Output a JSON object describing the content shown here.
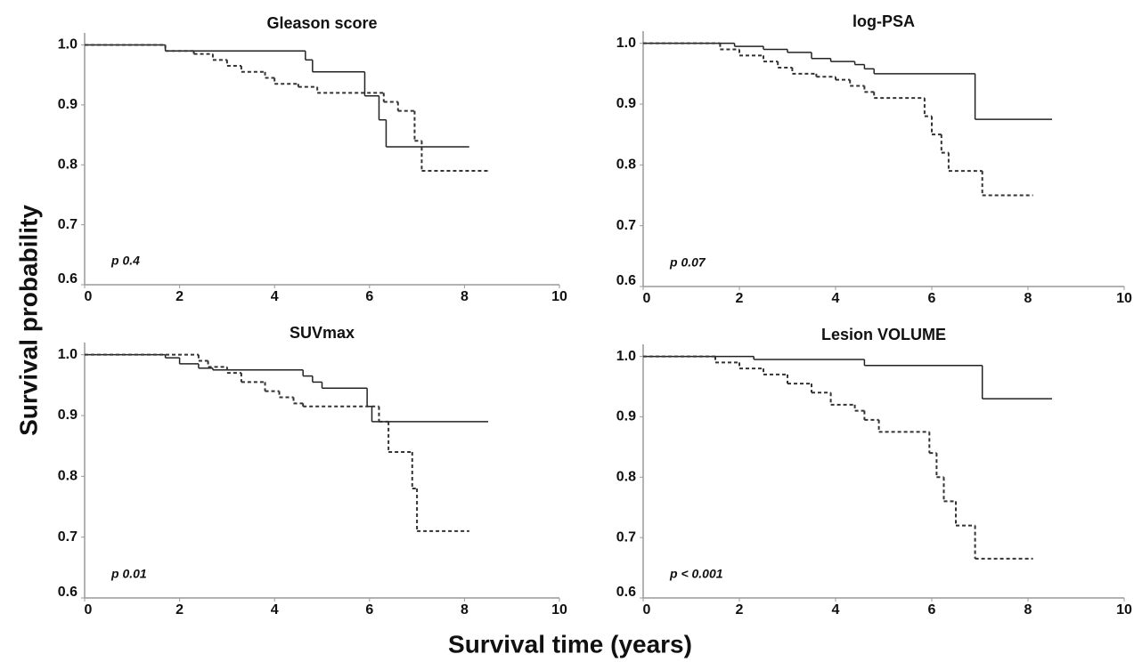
{
  "y_label": "Survival probability",
  "x_label": "Survival time (years)",
  "chart_data": [
    {
      "type": "line",
      "step": true,
      "title": "Gleason score",
      "annotation": "p 0.4",
      "xlim": [
        0,
        10
      ],
      "ylim": [
        0.6,
        1.02
      ],
      "xticks": [
        0,
        2,
        4,
        6,
        8,
        10
      ],
      "yticks": [
        0.6,
        0.7,
        0.8,
        0.9,
        {
          "value": 1,
          "label": "1.0"
        }
      ],
      "series": [
        {
          "color": "#222222",
          "dash": false,
          "x": [
            0,
            1.7,
            4.65,
            4.8,
            5.9,
            6.2,
            6.35,
            8.1
          ],
          "values": [
            1,
            0.99,
            0.975,
            0.955,
            0.915,
            0.875,
            0.83,
            0.83
          ]
        },
        {
          "color": "#333333",
          "dash": true,
          "x": [
            0,
            1.7,
            2.3,
            2.7,
            3.0,
            3.3,
            3.8,
            4.0,
            4.5,
            4.9,
            6.3,
            6.6,
            6.95,
            7.1,
            8.5
          ],
          "values": [
            1,
            0.99,
            0.985,
            0.975,
            0.965,
            0.955,
            0.945,
            0.935,
            0.93,
            0.92,
            0.905,
            0.89,
            0.84,
            0.79,
            0.79
          ]
        }
      ]
    },
    {
      "type": "line",
      "step": true,
      "title": "log-PSA",
      "annotation": "p 0.07",
      "xlim": [
        0,
        10
      ],
      "ylim": [
        0.6,
        1.02
      ],
      "xticks": [
        0,
        2,
        4,
        6,
        8,
        10
      ],
      "yticks": [
        0.6,
        0.7,
        0.8,
        0.9,
        {
          "value": 1,
          "label": "1.0"
        }
      ],
      "series": [
        {
          "color": "#222222",
          "dash": false,
          "x": [
            0,
            1.9,
            2.5,
            3.0,
            3.5,
            3.9,
            4.4,
            4.6,
            4.8,
            6.9,
            8.5
          ],
          "values": [
            1,
            0.995,
            0.99,
            0.985,
            0.975,
            0.97,
            0.965,
            0.958,
            0.95,
            0.875,
            0.875
          ]
        },
        {
          "color": "#333333",
          "dash": true,
          "x": [
            0,
            1.6,
            2.0,
            2.5,
            2.8,
            3.1,
            3.6,
            4.0,
            4.3,
            4.6,
            4.8,
            5.85,
            6.0,
            6.2,
            6.35,
            7.05,
            8.1
          ],
          "values": [
            1,
            0.99,
            0.98,
            0.97,
            0.96,
            0.95,
            0.945,
            0.94,
            0.93,
            0.92,
            0.91,
            0.88,
            0.85,
            0.82,
            0.79,
            0.75,
            0.75
          ]
        }
      ]
    },
    {
      "type": "line",
      "step": true,
      "title": "SUVmax",
      "annotation": "p 0.01",
      "xlim": [
        0,
        10
      ],
      "ylim": [
        0.6,
        1.02
      ],
      "xticks": [
        0,
        2,
        4,
        6,
        8,
        10
      ],
      "yticks": [
        0.6,
        0.7,
        0.8,
        0.9,
        {
          "value": 1,
          "label": "1.0"
        }
      ],
      "series": [
        {
          "color": "#222222",
          "dash": false,
          "x": [
            0,
            1.7,
            2.0,
            2.4,
            2.7,
            4.6,
            4.8,
            5.0,
            5.95,
            6.05,
            8.5
          ],
          "values": [
            1,
            0.995,
            0.985,
            0.978,
            0.975,
            0.965,
            0.955,
            0.945,
            0.915,
            0.89,
            0.89
          ]
        },
        {
          "color": "#333333",
          "dash": true,
          "x": [
            0,
            2.4,
            2.6,
            3.0,
            3.3,
            3.8,
            4.1,
            4.4,
            4.6,
            6.2,
            6.4,
            6.9,
            7.0,
            8.1
          ],
          "values": [
            1,
            0.99,
            0.98,
            0.97,
            0.955,
            0.94,
            0.93,
            0.92,
            0.915,
            0.89,
            0.84,
            0.78,
            0.71,
            0.71
          ]
        }
      ]
    },
    {
      "type": "line",
      "step": true,
      "title": "Lesion VOLUME",
      "annotation": "p < 0.001",
      "xlim": [
        0,
        10
      ],
      "ylim": [
        0.6,
        1.02
      ],
      "xticks": [
        0,
        2,
        4,
        6,
        8,
        10
      ],
      "yticks": [
        0.6,
        0.7,
        0.8,
        0.9,
        {
          "value": 1,
          "label": "1.0"
        }
      ],
      "series": [
        {
          "color": "#222222",
          "dash": false,
          "x": [
            0,
            2.3,
            4.6,
            7.05,
            8.5
          ],
          "values": [
            1,
            0.995,
            0.985,
            0.93,
            0.93
          ]
        },
        {
          "color": "#333333",
          "dash": true,
          "x": [
            0,
            1.5,
            2.0,
            2.5,
            3.0,
            3.5,
            3.9,
            4.4,
            4.6,
            4.9,
            5.95,
            6.1,
            6.25,
            6.5,
            6.9,
            8.1
          ],
          "values": [
            1,
            0.99,
            0.98,
            0.97,
            0.955,
            0.94,
            0.92,
            0.91,
            0.895,
            0.875,
            0.84,
            0.8,
            0.76,
            0.72,
            0.665,
            0.665
          ]
        }
      ]
    }
  ]
}
